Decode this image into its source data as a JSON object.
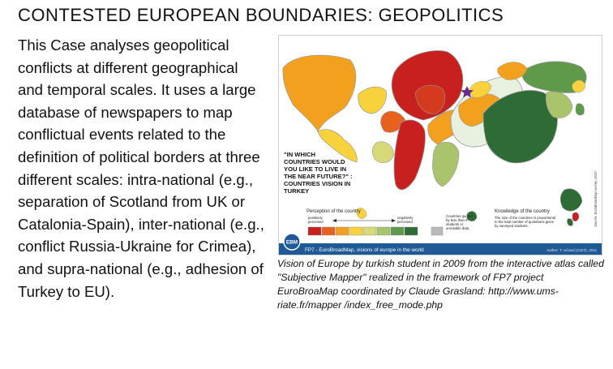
{
  "title": "CONTESTED EUROPEAN BOUNDARIES: GEOPOLITICS",
  "body_text": "This Case analyses geopolitical conflicts at different geographical and temporal scales. It uses a large database of newspapers to map conflictual events related to the definition of political borders at three different scales: intra-national (e.g., separation of Scotland from UK or Catalonia-Spain), inter-national (e.g., conflict Russia-Ukraine for Crimea), and supra-national (e.g., adhesion of Turkey to EU).",
  "figure": {
    "question": [
      "\"IN WHICH",
      "COUNTRIES WOULD",
      "YOU LIKE TO LIVE IN",
      "THE NEAR FUTURE?\" :",
      "COUNTRIES VISION IN",
      "TURKEY"
    ],
    "perception_title": "Perception of the country",
    "positively": [
      "positively",
      "perceived"
    ],
    "negatively": [
      "negatively",
      "perceived"
    ],
    "quoted_note": [
      "Countries quoted",
      "by less than 5",
      "students or",
      "unreliable data"
    ],
    "knowledge_title": "Knowledge of the country",
    "knowledge_note": [
      "The size of the countries is proportional",
      "to the total number of quotations given",
      "by surveyed students."
    ],
    "footer_left": "FP7 - EuroBroadMap, visions of europe in the world",
    "footer_right": "Author: T. Giraud (CIST), 2011",
    "logo_text": "EBM",
    "side_source": "Source: EuroBroadMap survey, 2010",
    "legend_colors": [
      "#c8201f",
      "#e8621f",
      "#f2a01d",
      "#f7d23c",
      "#d7d87a",
      "#a9c46a",
      "#5f9a4a",
      "#2e6b35"
    ],
    "gray_color": "#b9b9b9"
  },
  "caption": "Vision of Europe by turkish student in 2009 from the interactive atlas called \"Subjective Mapper\" realized in the framework of FP7 project EuroBroaMap coordinated by Claude Grasland: http://www.ums-riate.fr/mapper /index_free_mode.php"
}
